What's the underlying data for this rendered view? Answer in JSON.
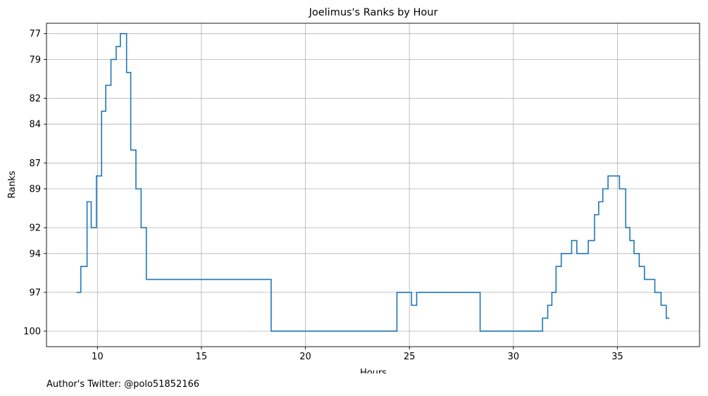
{
  "chart_data": {
    "type": "line",
    "drawstyle": "steps-post",
    "title": "Joelimus's Ranks by Hour",
    "xlabel": "Hours",
    "ylabel": "Ranks",
    "xlim": [
      7.55,
      38.95
    ],
    "ylim": [
      101.2,
      76.2
    ],
    "y_inverted": true,
    "grid": true,
    "line_color": "#1f77b4",
    "x_ticks": [
      10,
      15,
      20,
      25,
      30,
      35
    ],
    "y_ticks": [
      77,
      79,
      82,
      84,
      87,
      89,
      92,
      94,
      97,
      100
    ],
    "series": [
      {
        "x": [
          9.0,
          9.2,
          9.5,
          9.7,
          9.95,
          10.2,
          10.4,
          10.65,
          10.9,
          11.1,
          11.4,
          11.6,
          11.85,
          12.1,
          12.35,
          18.35,
          24.4,
          25.1,
          25.35,
          28.4,
          31.4,
          31.65,
          31.85,
          32.05,
          32.3,
          32.8,
          33.05,
          33.6,
          33.9,
          34.1,
          34.3,
          34.55,
          34.7,
          35.1,
          35.4,
          35.6,
          35.8,
          36.05,
          36.3,
          36.8,
          37.1,
          37.35,
          37.5
        ],
        "y": [
          97,
          95,
          90,
          92,
          88,
          83,
          81,
          79,
          78,
          77,
          80,
          86,
          89,
          92,
          96,
          100,
          97,
          98,
          97,
          100,
          99,
          98,
          97,
          95,
          94,
          93,
          94,
          93,
          91,
          90,
          89,
          88,
          88,
          89,
          92,
          93,
          94,
          95,
          96,
          97,
          98,
          99,
          99
        ]
      }
    ]
  },
  "footer": {
    "author": "Author's Twitter: @polo51852166"
  }
}
